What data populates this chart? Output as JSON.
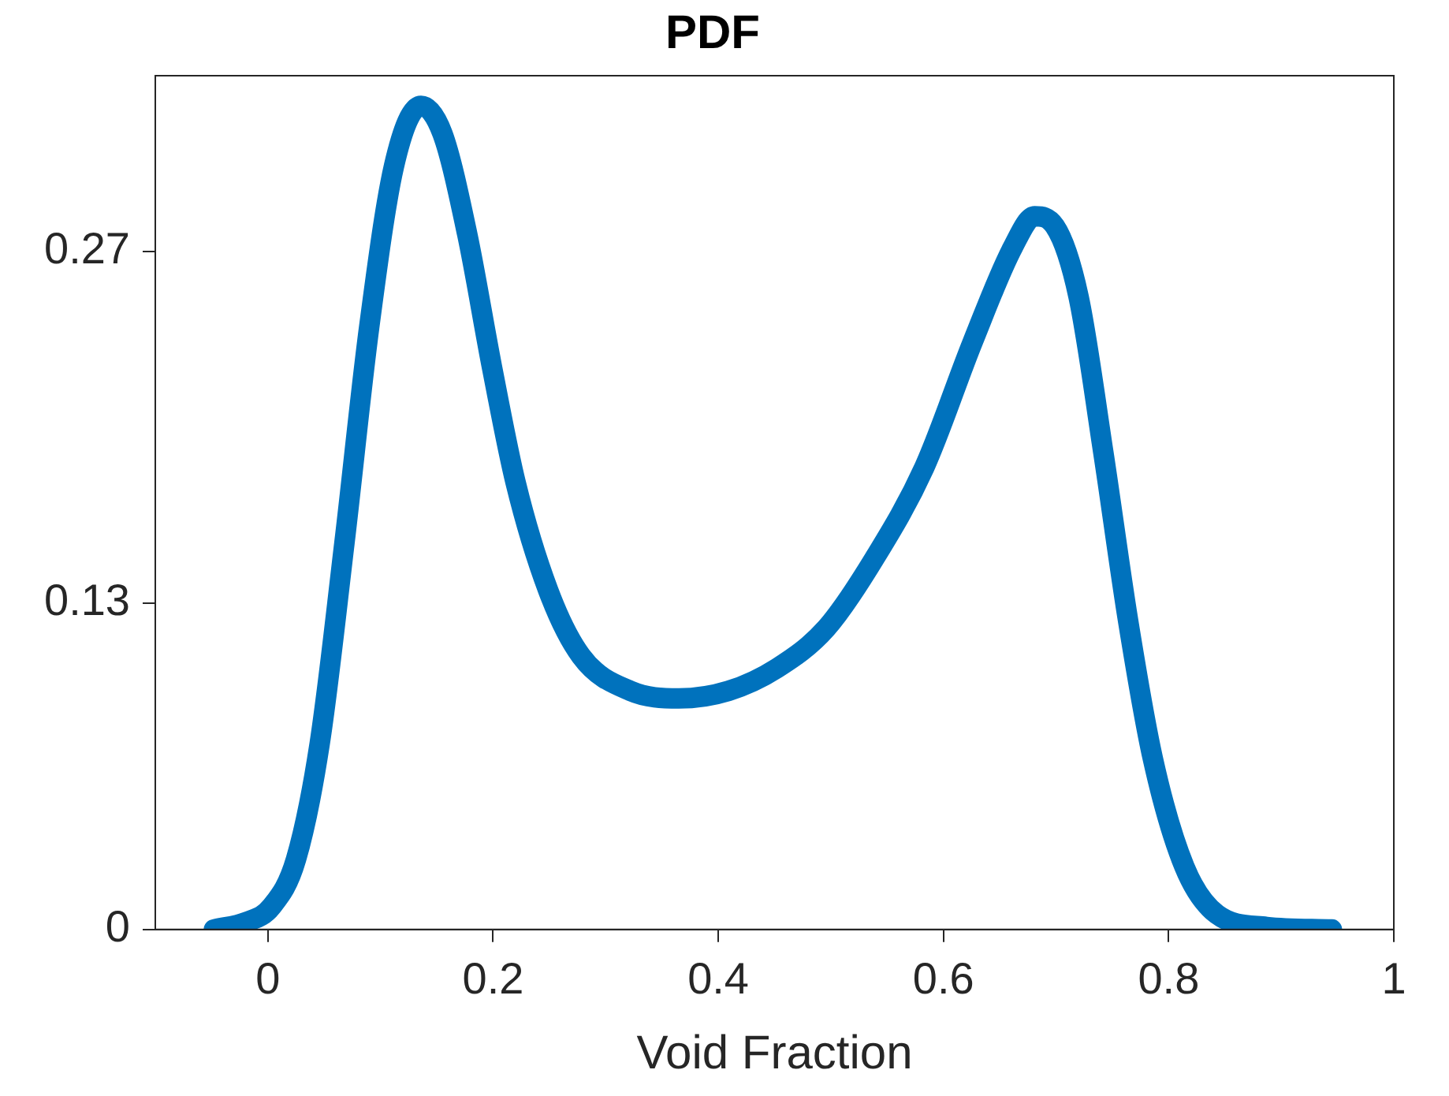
{
  "chart_data": {
    "type": "line",
    "title": "PDF",
    "xlabel": "Void Fraction",
    "xlim": [
      -0.1,
      1
    ],
    "xticks": [
      0,
      0.2,
      0.4,
      0.6,
      0.8,
      1
    ],
    "ylim": [
      0,
      0.34
    ],
    "yticks": [
      0,
      0.13,
      0.27
    ],
    "grid": false,
    "legend": false,
    "marker": "none",
    "line_style": "solid",
    "x": [
      -0.048,
      -0.019,
      0.003,
      0.025,
      0.046,
      0.068,
      0.09,
      0.112,
      0.136,
      0.155,
      0.177,
      0.199,
      0.22,
      0.249,
      0.278,
      0.322,
      0.365,
      0.409,
      0.452,
      0.496,
      0.539,
      0.583,
      0.626,
      0.662,
      0.681,
      0.699,
      0.72,
      0.742,
      0.764,
      0.786,
      0.814,
      0.843,
      0.887,
      0.945
    ],
    "series": [
      {
        "color": "#0072bd",
        "values": [
          0,
          0.003,
          0.009,
          0.028,
          0.074,
          0.154,
          0.24,
          0.304,
          0.328,
          0.317,
          0.277,
          0.224,
          0.178,
          0.135,
          0.109,
          0.095,
          0.092,
          0.095,
          0.104,
          0.12,
          0.148,
          0.184,
          0.234,
          0.272,
          0.284,
          0.28,
          0.252,
          0.19,
          0.123,
          0.068,
          0.025,
          0.006,
          0.001,
          0
        ]
      }
    ]
  }
}
